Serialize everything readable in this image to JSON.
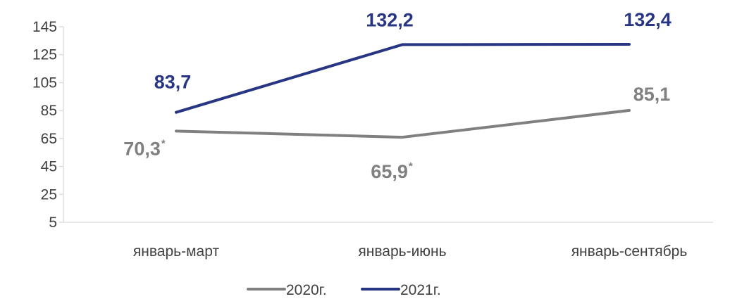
{
  "chart_data": {
    "type": "line",
    "categories": [
      "январь-март",
      "январь-июнь",
      "январь-сентябрь"
    ],
    "ylim": [
      5,
      145
    ],
    "yticks": [
      5,
      25,
      45,
      65,
      85,
      105,
      125,
      145
    ],
    "grid": false,
    "legend_position": "bottom",
    "series": [
      {
        "name": "2020г.",
        "color": "#808080",
        "values": [
          70.3,
          65.9,
          85.1
        ],
        "labels": [
          "70,3",
          "65,9",
          "85,1"
        ],
        "label_marks": [
          "*",
          "*",
          ""
        ]
      },
      {
        "name": "2021г.",
        "color": "#283583",
        "values": [
          83.7,
          132.2,
          132.4
        ],
        "labels": [
          "83,7",
          "132,2",
          "132,4"
        ],
        "label_marks": [
          "",
          "",
          ""
        ]
      }
    ]
  }
}
